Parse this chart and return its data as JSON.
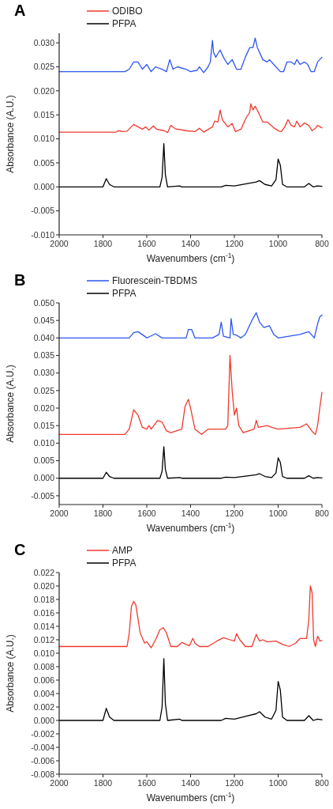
{
  "chart_data": [
    {
      "type": "line",
      "title": "A",
      "xlabel": "Wavenumbers (cm$^{-1}$)",
      "ylabel": "Absorbance (A.U.)",
      "xlim": [
        2000,
        800
      ],
      "xticks": [
        2000,
        1800,
        1600,
        1400,
        1200,
        1000,
        800
      ],
      "ylim": [
        -0.01,
        0.032
      ],
      "yticks": [
        {
          "value": -0.01,
          "label": "-0.010"
        },
        {
          "value": -0.005,
          "label": "-0.005"
        },
        {
          "value": 0,
          "label": "0.000"
        },
        {
          "value": 0.005,
          "label": "0.005"
        },
        {
          "value": 0.01,
          "label": "0.010"
        },
        {
          "value": 0.015,
          "label": "0.015"
        },
        {
          "value": 0.02,
          "label": "0.020"
        },
        {
          "value": 0.025,
          "label": "0.025"
        },
        {
          "value": 0.03,
          "label": "0.030"
        }
      ],
      "legend": "top left",
      "grid": false,
      "series": [
        {
          "color": "#2d55f2",
          "x": [
            2000,
            1700,
            1680,
            1660,
            1640,
            1620,
            1600,
            1580,
            1560,
            1530,
            1510,
            1495,
            1480,
            1460,
            1420,
            1400,
            1370,
            1360,
            1340,
            1320,
            1310,
            1300,
            1295,
            1285,
            1265,
            1250,
            1230,
            1210,
            1190,
            1170,
            1150,
            1130,
            1115,
            1105,
            1095,
            1070,
            1050,
            1040,
            1020,
            990,
            975,
            960,
            940,
            925,
            915,
            900,
            880,
            865,
            850,
            835,
            820,
            810,
            800
          ],
          "values": [
            0.024,
            0.024,
            0.0245,
            0.026,
            0.026,
            0.0245,
            0.0255,
            0.024,
            0.025,
            0.0245,
            0.024,
            0.0265,
            0.0245,
            0.025,
            0.0245,
            0.024,
            0.0243,
            0.025,
            0.0238,
            0.025,
            0.026,
            0.0305,
            0.028,
            0.027,
            0.0285,
            0.027,
            0.0255,
            0.0265,
            0.0245,
            0.0245,
            0.027,
            0.029,
            0.029,
            0.031,
            0.029,
            0.0265,
            0.026,
            0.0265,
            0.0255,
            0.024,
            0.024,
            0.026,
            0.026,
            0.0255,
            0.0265,
            0.0255,
            0.026,
            0.0255,
            0.024,
            0.024,
            0.026,
            0.0265,
            0.027
          ]
        },
        {
          "name": "ODIBO",
          "color": "#f03a2e",
          "x": [
            2000,
            1740,
            1730,
            1710,
            1690,
            1660,
            1640,
            1620,
            1605,
            1590,
            1570,
            1555,
            1520,
            1505,
            1490,
            1470,
            1420,
            1380,
            1360,
            1340,
            1300,
            1290,
            1275,
            1265,
            1255,
            1230,
            1210,
            1195,
            1170,
            1145,
            1130,
            1125,
            1115,
            1105,
            1090,
            1070,
            1050,
            1020,
            995,
            985,
            970,
            955,
            940,
            925,
            915,
            900,
            880,
            860,
            845,
            830,
            820,
            800
          ],
          "values": [
            0.0114,
            0.0114,
            0.0117,
            0.0115,
            0.0116,
            0.013,
            0.0125,
            0.012,
            0.0125,
            0.0118,
            0.0127,
            0.012,
            0.0117,
            0.0113,
            0.0128,
            0.0121,
            0.0117,
            0.0115,
            0.0122,
            0.0114,
            0.0125,
            0.0137,
            0.0135,
            0.016,
            0.014,
            0.0125,
            0.0132,
            0.0115,
            0.012,
            0.0145,
            0.0155,
            0.0173,
            0.016,
            0.0168,
            0.0155,
            0.0135,
            0.0135,
            0.0123,
            0.0116,
            0.0115,
            0.0125,
            0.014,
            0.0128,
            0.0125,
            0.0137,
            0.0125,
            0.0133,
            0.0128,
            0.0117,
            0.0122,
            0.0128,
            0.0123
          ]
        },
        {
          "name": "PFPA",
          "color": "#000000",
          "x": [
            2000,
            1800,
            1785,
            1770,
            1750,
            1540,
            1530,
            1522,
            1515,
            1505,
            1450,
            1440,
            1260,
            1240,
            1200,
            1150,
            1100,
            1085,
            1060,
            1030,
            1010,
            1000,
            990,
            980,
            960,
            880,
            860,
            840,
            820,
            800
          ],
          "values": [
            0,
            0,
            0.0017,
            0.0005,
            0,
            0,
            0.002,
            0.009,
            0.0025,
            0,
            0.0002,
            0,
            0,
            0.0003,
            0.0002,
            0.0006,
            0.001,
            0.0013,
            0.0005,
            0.0002,
            0.0015,
            0.0058,
            0.0045,
            0.0005,
            0,
            0,
            0.0007,
            0,
            0.0002,
            0.0001
          ]
        }
      ]
    },
    {
      "type": "line",
      "title": "B",
      "xlabel": "Wavenumbers (cm$^{-1}$)",
      "ylabel": "Absorbance (A.U.)",
      "xlim": [
        2000,
        800
      ],
      "xticks": [
        2000,
        1800,
        1600,
        1400,
        1200,
        1000,
        800
      ],
      "ylim": [
        -0.0075,
        0.05
      ],
      "yticks": [
        {
          "value": -0.005,
          "label": "-0.005"
        },
        {
          "value": 0,
          "label": "0.000"
        },
        {
          "value": 0.005,
          "label": "0.005"
        },
        {
          "value": 0.01,
          "label": "0.010"
        },
        {
          "value": 0.015,
          "label": "0.015"
        },
        {
          "value": 0.02,
          "label": "0.020"
        },
        {
          "value": 0.025,
          "label": "0.025"
        },
        {
          "value": 0.03,
          "label": "0.030"
        },
        {
          "value": 0.035,
          "label": "0.035"
        },
        {
          "value": 0.04,
          "label": "0.040"
        },
        {
          "value": 0.045,
          "label": "0.045"
        },
        {
          "value": 0.05,
          "label": "0.050"
        }
      ],
      "legend": "top left",
      "grid": false,
      "series": [
        {
          "name": "Fluorescein-TBDMS",
          "color": "#2d55f2",
          "x": [
            2000,
            1680,
            1660,
            1640,
            1610,
            1600,
            1590,
            1560,
            1530,
            1500,
            1420,
            1410,
            1395,
            1380,
            1300,
            1270,
            1260,
            1250,
            1220,
            1215,
            1205,
            1190,
            1170,
            1150,
            1120,
            1100,
            1085,
            1065,
            1040,
            1020,
            1000,
            900,
            860,
            835,
            820,
            810,
            800
          ],
          "values": [
            0.04,
            0.04,
            0.0415,
            0.0418,
            0.0405,
            0.04,
            0.0403,
            0.0412,
            0.04,
            0.04,
            0.04,
            0.0424,
            0.0424,
            0.04,
            0.04,
            0.041,
            0.0445,
            0.0405,
            0.04,
            0.0455,
            0.041,
            0.0408,
            0.04,
            0.041,
            0.045,
            0.0472,
            0.0445,
            0.043,
            0.0435,
            0.041,
            0.04,
            0.041,
            0.0418,
            0.04,
            0.044,
            0.046,
            0.0465
          ]
        },
        {
          "color": "#f03a2e",
          "x": [
            2000,
            1700,
            1680,
            1660,
            1640,
            1620,
            1600,
            1590,
            1580,
            1550,
            1530,
            1510,
            1490,
            1440,
            1425,
            1410,
            1400,
            1380,
            1350,
            1320,
            1240,
            1230,
            1220,
            1210,
            1200,
            1190,
            1180,
            1160,
            1110,
            1100,
            1090,
            1050,
            1030,
            1000,
            900,
            870,
            840,
            830,
            820,
            810,
            800
          ],
          "values": [
            0.0125,
            0.0125,
            0.014,
            0.0195,
            0.018,
            0.0145,
            0.014,
            0.015,
            0.014,
            0.0165,
            0.016,
            0.0135,
            0.013,
            0.014,
            0.0205,
            0.0225,
            0.02,
            0.014,
            0.0125,
            0.014,
            0.014,
            0.015,
            0.035,
            0.025,
            0.018,
            0.02,
            0.015,
            0.013,
            0.014,
            0.0165,
            0.0145,
            0.015,
            0.0145,
            0.014,
            0.0145,
            0.0155,
            0.013,
            0.0125,
            0.015,
            0.02,
            0.0245
          ]
        },
        {
          "name": "PFPA",
          "color": "#000000",
          "x": [
            2000,
            1800,
            1785,
            1770,
            1750,
            1540,
            1530,
            1522,
            1515,
            1505,
            1450,
            1440,
            1260,
            1240,
            1200,
            1150,
            1100,
            1085,
            1060,
            1030,
            1010,
            1000,
            990,
            980,
            960,
            880,
            860,
            840,
            820,
            800
          ],
          "values": [
            0,
            0,
            0.0017,
            0.0005,
            0,
            0,
            0.002,
            0.009,
            0.0025,
            0,
            0.0002,
            0,
            0,
            0.0003,
            0.0002,
            0.0006,
            0.001,
            0.0013,
            0.0005,
            0.0002,
            0.0015,
            0.0058,
            0.0045,
            0.0005,
            0,
            0,
            0.0007,
            0,
            0.0002,
            0.0001
          ]
        }
      ]
    },
    {
      "type": "line",
      "title": "C",
      "xlabel": "Wavenumbers (cm$^{-1}$)",
      "ylabel": "Absorbance (A.U.)",
      "xlim": [
        2000,
        800
      ],
      "xticks": [
        2000,
        1800,
        1600,
        1400,
        1200,
        1000,
        800
      ],
      "ylim": [
        -0.008,
        0.022
      ],
      "yticks": [
        {
          "value": -0.008,
          "label": "-0.008"
        },
        {
          "value": -0.006,
          "label": "-0.006"
        },
        {
          "value": -0.004,
          "label": "-0.004"
        },
        {
          "value": -0.002,
          "label": "-0.002"
        },
        {
          "value": 0,
          "label": "0.000"
        },
        {
          "value": 0.002,
          "label": "0.002"
        },
        {
          "value": 0.004,
          "label": "0.004"
        },
        {
          "value": 0.006,
          "label": "0.006"
        },
        {
          "value": 0.008,
          "label": "0.008"
        },
        {
          "value": 0.01,
          "label": "0.010"
        },
        {
          "value": 0.012,
          "label": "0.012"
        },
        {
          "value": 0.014,
          "label": "0.014"
        },
        {
          "value": 0.016,
          "label": "0.016"
        },
        {
          "value": 0.018,
          "label": "0.018"
        },
        {
          "value": 0.02,
          "label": "0.020"
        },
        {
          "value": 0.022,
          "label": "0.022"
        }
      ],
      "legend": "top left",
      "grid": false,
      "series": [
        {
          "name": "AMP",
          "color": "#f03a2e",
          "x": [
            2000,
            1690,
            1680,
            1670,
            1660,
            1650,
            1630,
            1610,
            1600,
            1580,
            1560,
            1540,
            1525,
            1510,
            1490,
            1460,
            1440,
            1420,
            1405,
            1390,
            1380,
            1360,
            1320,
            1280,
            1250,
            1220,
            1200,
            1190,
            1175,
            1150,
            1120,
            1100,
            1085,
            1070,
            1050,
            1010,
            980,
            950,
            920,
            900,
            870,
            860,
            853,
            845,
            838,
            830,
            820,
            815,
            810,
            800
          ],
          "values": [
            0.011,
            0.011,
            0.013,
            0.017,
            0.0177,
            0.0172,
            0.013,
            0.0115,
            0.0117,
            0.0108,
            0.012,
            0.0135,
            0.0138,
            0.013,
            0.011,
            0.011,
            0.0116,
            0.0113,
            0.0111,
            0.0122,
            0.0115,
            0.011,
            0.011,
            0.0118,
            0.0123,
            0.012,
            0.0118,
            0.0129,
            0.012,
            0.011,
            0.011,
            0.0128,
            0.0118,
            0.012,
            0.0117,
            0.0118,
            0.0113,
            0.011,
            0.0115,
            0.0122,
            0.0122,
            0.015,
            0.02,
            0.019,
            0.012,
            0.011,
            0.0125,
            0.0123,
            0.0118,
            0.0119
          ]
        },
        {
          "name": "PFPA",
          "color": "#000000",
          "x": [
            2000,
            1800,
            1785,
            1770,
            1750,
            1540,
            1530,
            1522,
            1515,
            1505,
            1450,
            1440,
            1260,
            1240,
            1200,
            1150,
            1100,
            1085,
            1060,
            1030,
            1010,
            1000,
            990,
            980,
            960,
            880,
            860,
            840,
            820,
            800
          ],
          "values": [
            0,
            0,
            0.0018,
            0.0005,
            0,
            0,
            0.002,
            0.0092,
            0.0025,
            0,
            0.0002,
            0,
            0,
            0.0003,
            0.0002,
            0.0006,
            0.001,
            0.0013,
            0.0005,
            0.0002,
            0.0015,
            0.0058,
            0.0045,
            0.0005,
            0,
            0,
            0.0007,
            0,
            0.0002,
            0.0001
          ]
        }
      ]
    }
  ]
}
